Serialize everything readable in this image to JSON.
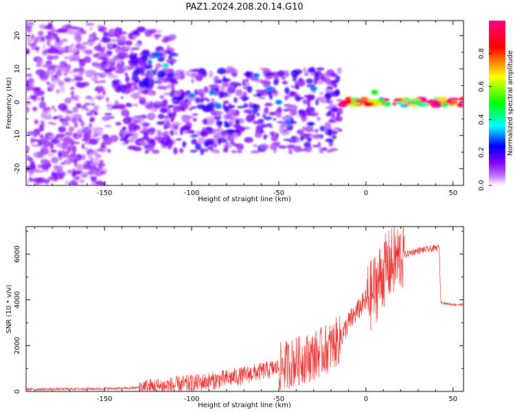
{
  "title": "PAZ1.2024.208.20.14.G10",
  "chart_data": [
    {
      "type": "heatmap",
      "xlabel": "Height of straight line (km)",
      "ylabel": "Frequency (Hz)",
      "xlim": [
        -195,
        56
      ],
      "ylim": [
        -25,
        24.5
      ],
      "x_ticks": [
        -150,
        -100,
        -50,
        0,
        50
      ],
      "y_ticks": [
        -20,
        -10,
        0,
        10,
        20
      ],
      "colorbar": {
        "label": "Normalized spectral amplitude",
        "range": [
          0,
          1
        ],
        "ticks": [
          0.0,
          0.2,
          0.4,
          0.6,
          0.8
        ],
        "colormap": [
          "#ffffff",
          "#7f00ff",
          "#0000ff",
          "#00ffff",
          "#00ff00",
          "#ffff00",
          "#ff0000",
          "#ff007f"
        ]
      },
      "regions": [
        {
          "x": [
            -195,
            -150
          ],
          "f": [
            -25,
            24
          ],
          "amplitude": 0.1
        },
        {
          "x": [
            -150,
            -110
          ],
          "f": [
            -15,
            22
          ],
          "amplitude": 0.12
        },
        {
          "x": [
            -135,
            -110
          ],
          "f": [
            5,
            15
          ],
          "amplitude": 0.2
        },
        {
          "x": [
            -110,
            -15
          ],
          "f": [
            -15,
            10
          ],
          "amplitude": 0.15
        },
        {
          "x": [
            -15,
            56
          ],
          "f": [
            -1,
            1
          ],
          "amplitude": 0.85
        }
      ],
      "hotspots": [
        {
          "x": -115,
          "f": 11,
          "amplitude": 0.35
        },
        {
          "x": -100,
          "f": 2,
          "amplitude": 0.3
        },
        {
          "x": -88,
          "f": 3,
          "amplitude": 0.3
        },
        {
          "x": -85,
          "f": -1,
          "amplitude": 0.3
        },
        {
          "x": -63,
          "f": 8,
          "amplitude": 0.3
        },
        {
          "x": -55,
          "f": 4,
          "amplitude": 0.3
        },
        {
          "x": -50,
          "f": 0,
          "amplitude": 0.3
        },
        {
          "x": -45,
          "f": -6,
          "amplitude": 0.3
        },
        {
          "x": -30,
          "f": 4,
          "amplitude": 0.3
        },
        {
          "x": 5,
          "f": 3,
          "amplitude": 0.5
        }
      ]
    },
    {
      "type": "line",
      "xlabel": "Height of straight line (km)",
      "ylabel": "SNR (10 * v/v)",
      "xlim": [
        -195,
        56
      ],
      "ylim": [
        0,
        7200
      ],
      "x_ticks": [
        -150,
        -100,
        -50,
        0,
        50
      ],
      "y_ticks": [
        0,
        2000,
        4000,
        6000
      ],
      "color": "#ee3333",
      "series": [
        {
          "x": [
            -195,
            -180,
            -160,
            -140,
            -130,
            -120,
            -110,
            -100,
            -90,
            -80,
            -70,
            -60,
            -50,
            -40,
            -30,
            -25,
            -20,
            -15,
            -10,
            -8,
            -5,
            -2,
            0,
            3,
            5,
            8,
            10,
            12,
            15,
            18,
            20,
            25,
            30,
            35,
            40,
            42,
            43,
            45,
            50,
            56
          ],
          "y": [
            90,
            100,
            110,
            130,
            160,
            200,
            260,
            340,
            440,
            560,
            700,
            870,
            1050,
            1300,
            1550,
            1750,
            1950,
            2250,
            3000,
            3200,
            3500,
            3800,
            4000,
            4200,
            4500,
            4900,
            5200,
            5400,
            5600,
            5800,
            5900,
            6050,
            6150,
            6200,
            6250,
            6300,
            3900,
            3850,
            3800,
            3780
          ]
        }
      ],
      "spread": [
        {
          "x": [
            -195,
            -130
          ],
          "amp": 50
        },
        {
          "x": [
            -130,
            -50
          ],
          "amp": 400
        },
        {
          "x": [
            -50,
            -14
          ],
          "amp": 1100
        },
        {
          "x": [
            -14,
            0
          ],
          "amp": 500
        },
        {
          "x": [
            0,
            22
          ],
          "amp": 1600
        },
        {
          "x": [
            22,
            42
          ],
          "amp": 150
        },
        {
          "x": [
            42,
            56
          ],
          "amp": 50
        }
      ]
    }
  ]
}
